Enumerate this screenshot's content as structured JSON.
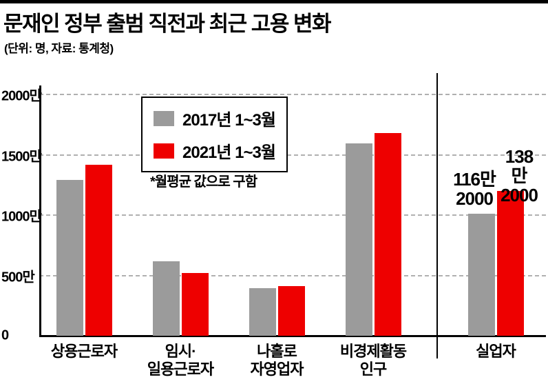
{
  "chart_data": {
    "type": "bar",
    "title": "문재인 정부 출범 직전과 최근 고용 변화",
    "subtitle": "(단위: 명, 자료: 통계청)",
    "note": "*월평균 값으로 구함",
    "unit": "만 명",
    "ylim": [
      0,
      2000
    ],
    "grid": "horizontal-dashed",
    "legend_position": "upper-left-inside",
    "yticks": [
      {
        "value": 0,
        "label": "0"
      },
      {
        "value": 500,
        "label": "500만"
      },
      {
        "value": 1000,
        "label": "1000만"
      },
      {
        "value": 1500,
        "label": "1500만"
      },
      {
        "value": 2000,
        "label": "2000만"
      }
    ],
    "legend": [
      {
        "name": "2017년 1~3월",
        "color": "#9b9b9b"
      },
      {
        "name": "2021년 1~3월",
        "color": "#ee0000"
      }
    ],
    "panels": [
      {
        "name": "main",
        "categories": [
          "상용근로자",
          "임시·\n일용근로자",
          "나홀로\n자영업자",
          "비경제활동\n인구"
        ],
        "series": [
          {
            "name": "2017년 1~3월",
            "color": "#9b9b9b",
            "values": [
              1290,
              620,
              395,
              1595
            ]
          },
          {
            "name": "2021년 1~3월",
            "color": "#ee0000",
            "values": [
              1420,
              520,
              410,
              1680
            ]
          }
        ]
      },
      {
        "name": "unemployed",
        "categories": [
          "실업자"
        ],
        "axis_max": 230,
        "series": [
          {
            "name": "2017년 1~3월",
            "color": "#9b9b9b",
            "values": [
              116.2
            ],
            "value_labels": [
              "116만\n2000"
            ]
          },
          {
            "name": "2021년 1~3월",
            "color": "#ee0000",
            "values": [
              138.2
            ],
            "value_labels": [
              "138만\n2000"
            ]
          }
        ]
      }
    ]
  }
}
